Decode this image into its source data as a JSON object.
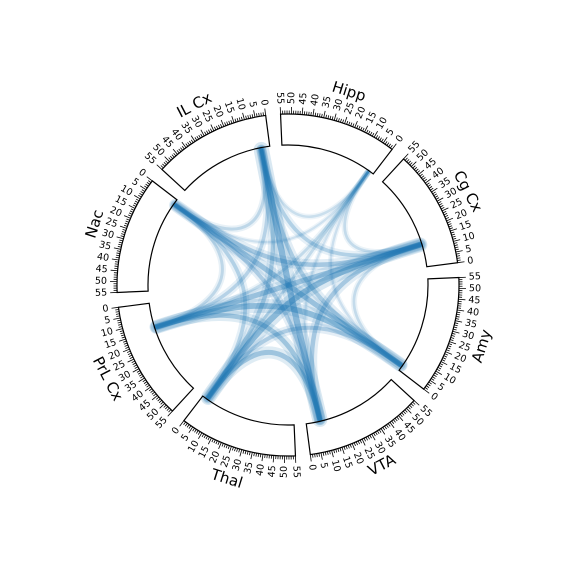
{
  "figure": {
    "type": "chord-diagram",
    "ticks": [
      "0",
      "5",
      "10",
      "15",
      "20",
      "25",
      "30",
      "35",
      "40",
      "45",
      "50",
      "55"
    ],
    "colors": {
      "link": "#1f77b4",
      "frame": "#000000",
      "text": "#000000"
    },
    "segments": [
      {
        "name": "Hipp"
      },
      {
        "name": "Cg Cx"
      },
      {
        "name": "Amy"
      },
      {
        "name": "VTA"
      },
      {
        "name": "Thal"
      },
      {
        "name": "PrL Cx"
      },
      {
        "name": "Nac"
      },
      {
        "name": "IL Cx"
      }
    ],
    "links": [
      {
        "from": "Hipp",
        "from_pos": 3,
        "to": "Thal",
        "to_pos": 3,
        "strength": 0.28
      },
      {
        "from": "Hipp",
        "from_pos": 3,
        "to": "PrL Cx",
        "to_pos": 14,
        "strength": 0.28
      },
      {
        "from": "Hipp",
        "from_pos": 3,
        "to": "Amy",
        "to_pos": 3,
        "strength": 0.18
      },
      {
        "from": "Hipp",
        "from_pos": 3,
        "to": "Nac",
        "to_pos": 3,
        "strength": 0.15
      },
      {
        "from": "Cg Cx",
        "from_pos": 13,
        "to": "Thal",
        "to_pos": 3,
        "strength": 0.9
      },
      {
        "from": "Cg Cx",
        "from_pos": 13,
        "to": "PrL Cx",
        "to_pos": 14,
        "strength": 0.75
      },
      {
        "from": "Cg Cx",
        "from_pos": 13,
        "to": "Nac",
        "to_pos": 3,
        "strength": 0.6
      },
      {
        "from": "Cg Cx",
        "from_pos": 13,
        "to": "IL Cx",
        "to_pos": 5,
        "strength": 0.45
      },
      {
        "from": "Cg Cx",
        "from_pos": 13,
        "to": "Hipp",
        "to_pos": 3,
        "strength": 0.25
      },
      {
        "from": "Amy",
        "from_pos": 3,
        "to": "PrL Cx",
        "to_pos": 14,
        "strength": 0.85
      },
      {
        "from": "Amy",
        "from_pos": 3,
        "to": "Nac",
        "to_pos": 3,
        "strength": 0.75
      },
      {
        "from": "Amy",
        "from_pos": 3,
        "to": "IL Cx",
        "to_pos": 5,
        "strength": 0.55
      },
      {
        "from": "Amy",
        "from_pos": 3,
        "to": "Thal",
        "to_pos": 3,
        "strength": 0.5
      },
      {
        "from": "VTA",
        "from_pos": 8,
        "to": "IL Cx",
        "to_pos": 5,
        "strength": 0.95
      },
      {
        "from": "VTA",
        "from_pos": 8,
        "to": "Thal",
        "to_pos": 3,
        "strength": 0.7
      },
      {
        "from": "VTA",
        "from_pos": 8,
        "to": "PrL Cx",
        "to_pos": 14,
        "strength": 0.65
      },
      {
        "from": "VTA",
        "from_pos": 8,
        "to": "Cg Cx",
        "to_pos": 13,
        "strength": 0.6
      },
      {
        "from": "VTA",
        "from_pos": 8,
        "to": "Nac",
        "to_pos": 3,
        "strength": 0.5
      },
      {
        "from": "Thal",
        "from_pos": 3,
        "to": "IL Cx",
        "to_pos": 5,
        "strength": 0.55
      },
      {
        "from": "Thal",
        "from_pos": 3,
        "to": "Nac",
        "to_pos": 3,
        "strength": 0.45
      },
      {
        "from": "PrL Cx",
        "from_pos": 14,
        "to": "IL Cx",
        "to_pos": 5,
        "strength": 0.4
      },
      {
        "from": "PrL Cx",
        "from_pos": 14,
        "to": "Nac",
        "to_pos": 3,
        "strength": 0.3
      },
      {
        "from": "IL Cx",
        "from_pos": 5,
        "to": "Nac",
        "to_pos": 3,
        "strength": 0.3
      },
      {
        "from": "Hipp",
        "from_pos": 3,
        "to": "IL Cx",
        "to_pos": 5,
        "strength": 0.2
      },
      {
        "from": "Hipp",
        "from_pos": 3,
        "to": "VTA",
        "to_pos": 8,
        "strength": 0.15
      },
      {
        "from": "Amy",
        "from_pos": 3,
        "to": "Cg Cx",
        "to_pos": 13,
        "strength": 0.25
      }
    ]
  }
}
